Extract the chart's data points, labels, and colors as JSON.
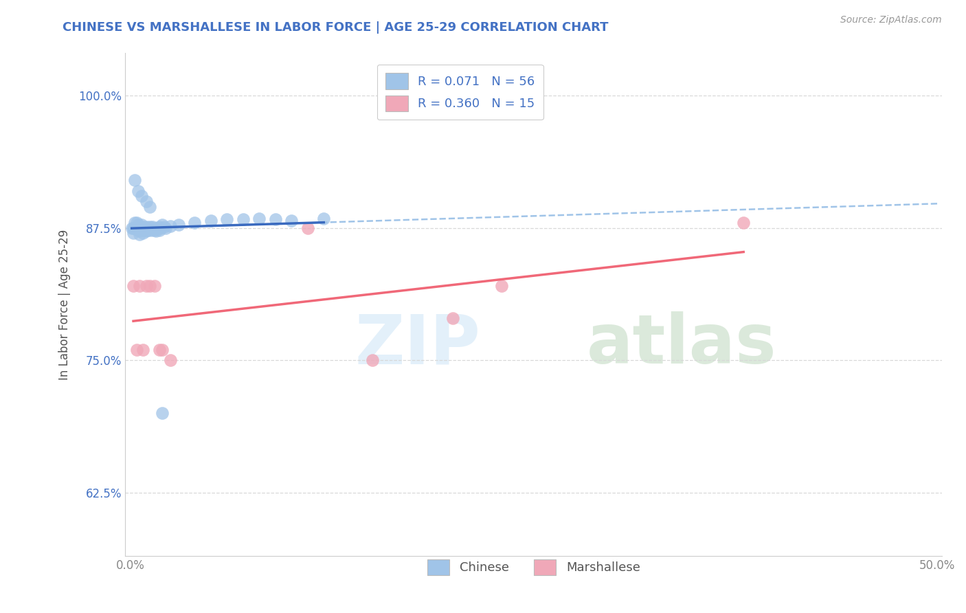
{
  "title": "CHINESE VS MARSHALLESE IN LABOR FORCE | AGE 25-29 CORRELATION CHART",
  "source": "Source: ZipAtlas.com",
  "ylabel": "In Labor Force | Age 25-29",
  "xlim": [
    -0.003,
    0.503
  ],
  "ylim": [
    0.565,
    1.04
  ],
  "xtick_positions": [
    0.0,
    0.5
  ],
  "xtick_labels": [
    "0.0%",
    "50.0%"
  ],
  "ytick_positions": [
    0.625,
    0.75,
    0.875,
    1.0
  ],
  "ytick_labels": [
    "62.5%",
    "75.0%",
    "87.5%",
    "100.0%"
  ],
  "chinese_R": 0.071,
  "chinese_N": 56,
  "marshallese_R": 0.36,
  "marshallese_N": 15,
  "background_color": "#ffffff",
  "chinese_dot_color": "#a0c4e8",
  "marshallese_dot_color": "#f0a8b8",
  "chinese_line_color": "#3a6abf",
  "marshallese_line_color": "#f06878",
  "dashed_line_color": "#a0c4e8",
  "grid_color": "#d8d8d8",
  "title_color": "#4472c4",
  "source_color": "#999999",
  "ylabel_color": "#555555",
  "ytick_color": "#4472c4",
  "xtick_color": "#888888",
  "legend_label_color": "#4472c4",
  "bottom_legend_color": "#555555",
  "chinese_x": [
    0.001,
    0.002,
    0.002,
    0.003,
    0.003,
    0.004,
    0.004,
    0.005,
    0.005,
    0.006,
    0.006,
    0.006,
    0.007,
    0.007,
    0.008,
    0.008,
    0.008,
    0.009,
    0.009,
    0.01,
    0.01,
    0.011,
    0.011,
    0.012,
    0.012,
    0.013,
    0.013,
    0.014,
    0.014,
    0.015,
    0.015,
    0.016,
    0.016,
    0.017,
    0.018,
    0.018,
    0.019,
    0.02,
    0.021,
    0.022,
    0.025,
    0.03,
    0.04,
    0.05,
    0.06,
    0.07,
    0.08,
    0.09,
    0.1,
    0.12,
    0.003,
    0.005,
    0.007,
    0.01,
    0.012,
    0.02
  ],
  "chinese_y": [
    0.875,
    0.875,
    0.87,
    0.88,
    0.875,
    0.88,
    0.875,
    0.878,
    0.873,
    0.876,
    0.872,
    0.869,
    0.878,
    0.873,
    0.876,
    0.875,
    0.87,
    0.875,
    0.873,
    0.876,
    0.872,
    0.875,
    0.873,
    0.876,
    0.874,
    0.875,
    0.873,
    0.874,
    0.876,
    0.875,
    0.873,
    0.874,
    0.872,
    0.875,
    0.876,
    0.873,
    0.875,
    0.878,
    0.876,
    0.875,
    0.877,
    0.878,
    0.88,
    0.882,
    0.883,
    0.883,
    0.884,
    0.883,
    0.882,
    0.884,
    0.92,
    0.91,
    0.905,
    0.9,
    0.895,
    0.7
  ],
  "marshallese_x": [
    0.002,
    0.004,
    0.006,
    0.008,
    0.01,
    0.012,
    0.015,
    0.018,
    0.02,
    0.025,
    0.11,
    0.15,
    0.2,
    0.23,
    0.38
  ],
  "marshallese_y": [
    0.82,
    0.76,
    0.82,
    0.76,
    0.82,
    0.82,
    0.82,
    0.76,
    0.76,
    0.75,
    0.875,
    0.75,
    0.79,
    0.82,
    0.88
  ]
}
